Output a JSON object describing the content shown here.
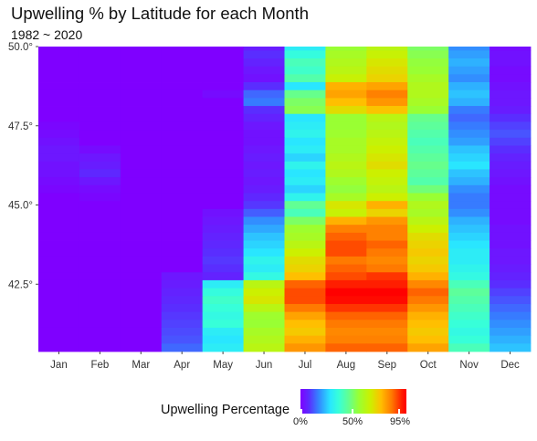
{
  "title": "Upwelling % by Latitude for each Month",
  "subtitle": "1982 ~ 2020",
  "legend": {
    "title": "Upwelling Percentage",
    "labels": [
      "0%",
      "50%",
      "95%"
    ],
    "label_values": [
      0,
      50,
      95
    ],
    "range": [
      0,
      97
    ]
  },
  "chart_data": {
    "type": "heatmap",
    "title": "Upwelling % by Latitude for each Month",
    "subtitle": "1982 ~ 2020",
    "xlabel": "",
    "ylabel": "",
    "x_categories": [
      "Jan",
      "Feb",
      "Mar",
      "Apr",
      "May",
      "Jun",
      "Jul",
      "Aug",
      "Sep",
      "Oct",
      "Nov",
      "Dec"
    ],
    "y_tick_labels": [
      "42.5°",
      "45.0°",
      "47.5°",
      "50.0°"
    ],
    "y_tick_values": [
      42.5,
      45.0,
      47.5,
      50.0
    ],
    "ylim": [
      40.375,
      50.0
    ],
    "colorscale": "rainbow (purple 0% → cyan → green 50% → yellow → red 95%)",
    "grid": false,
    "legend_position": "bottom",
    "latitudes": [
      50.0,
      49.75,
      49.5,
      49.25,
      49.0,
      48.75,
      48.5,
      48.25,
      48.0,
      47.75,
      47.5,
      47.25,
      47.0,
      46.75,
      46.5,
      46.25,
      46.0,
      45.75,
      45.5,
      45.25,
      45.0,
      44.75,
      44.5,
      44.25,
      44.0,
      43.75,
      43.5,
      43.25,
      43.0,
      42.75,
      42.5,
      42.25,
      42.0,
      41.75,
      41.5,
      41.25,
      41.0,
      40.75,
      40.5
    ],
    "values_note": "rows follow latitudes (north to south); columns follow x_categories; values in %",
    "values": [
      [
        0,
        0,
        0,
        0,
        0,
        5,
        30,
        55,
        62,
        50,
        18,
        2
      ],
      [
        0,
        0,
        0,
        0,
        0,
        8,
        35,
        58,
        65,
        52,
        20,
        3
      ],
      [
        0,
        0,
        0,
        0,
        0,
        6,
        40,
        60,
        68,
        54,
        22,
        3
      ],
      [
        0,
        0,
        0,
        0,
        0,
        4,
        38,
        62,
        70,
        55,
        20,
        2
      ],
      [
        0,
        0,
        0,
        0,
        0,
        3,
        42,
        65,
        72,
        58,
        18,
        2
      ],
      [
        0,
        0,
        0,
        0,
        0,
        8,
        28,
        78,
        80,
        60,
        22,
        3
      ],
      [
        0,
        0,
        0,
        0,
        2,
        14,
        46,
        80,
        85,
        60,
        24,
        4
      ],
      [
        0,
        0,
        0,
        0,
        0,
        16,
        50,
        76,
        82,
        58,
        22,
        4
      ],
      [
        0,
        0,
        0,
        0,
        0,
        8,
        52,
        70,
        75,
        55,
        16,
        5
      ],
      [
        0,
        0,
        0,
        0,
        0,
        6,
        28,
        55,
        62,
        46,
        14,
        8
      ],
      [
        1,
        0,
        0,
        0,
        0,
        4,
        30,
        55,
        60,
        44,
        16,
        10
      ],
      [
        2,
        0,
        0,
        0,
        0,
        3,
        32,
        56,
        62,
        42,
        18,
        12
      ],
      [
        3,
        0,
        0,
        0,
        0,
        3,
        28,
        58,
        64,
        40,
        20,
        10
      ],
      [
        4,
        2,
        0,
        0,
        0,
        4,
        30,
        58,
        66,
        42,
        24,
        8
      ],
      [
        4,
        4,
        0,
        0,
        0,
        5,
        26,
        60,
        68,
        44,
        26,
        6
      ],
      [
        3,
        5,
        0,
        0,
        0,
        4,
        32,
        62,
        70,
        46,
        28,
        5
      ],
      [
        3,
        7,
        0,
        0,
        0,
        5,
        28,
        60,
        66,
        44,
        24,
        4
      ],
      [
        2,
        4,
        0,
        0,
        0,
        4,
        30,
        56,
        64,
        42,
        22,
        3
      ],
      [
        1,
        2,
        0,
        0,
        0,
        5,
        26,
        54,
        62,
        48,
        18,
        2
      ],
      [
        0,
        1,
        0,
        0,
        0,
        7,
        32,
        58,
        66,
        55,
        16,
        2
      ],
      [
        0,
        0,
        0,
        0,
        0,
        9,
        45,
        68,
        78,
        60,
        16,
        2
      ],
      [
        0,
        0,
        0,
        0,
        3,
        13,
        40,
        65,
        72,
        58,
        18,
        2
      ],
      [
        0,
        0,
        0,
        0,
        4,
        18,
        50,
        78,
        82,
        62,
        22,
        2
      ],
      [
        0,
        0,
        0,
        0,
        5,
        21,
        56,
        85,
        85,
        66,
        24,
        3
      ],
      [
        0,
        0,
        0,
        0,
        6,
        24,
        58,
        88,
        85,
        70,
        26,
        3
      ],
      [
        0,
        0,
        0,
        0,
        7,
        26,
        62,
        90,
        88,
        72,
        28,
        3
      ],
      [
        0,
        0,
        0,
        0,
        8,
        28,
        66,
        90,
        86,
        74,
        30,
        4
      ],
      [
        0,
        0,
        0,
        0,
        9,
        32,
        70,
        86,
        84,
        72,
        30,
        4
      ],
      [
        0,
        0,
        0,
        0,
        8,
        30,
        72,
        88,
        86,
        74,
        32,
        5
      ],
      [
        0,
        0,
        0,
        4,
        6,
        34,
        76,
        90,
        92,
        78,
        34,
        6
      ],
      [
        0,
        0,
        0,
        5,
        30,
        62,
        88,
        94,
        94,
        84,
        40,
        8
      ],
      [
        0,
        0,
        0,
        6,
        35,
        66,
        90,
        97,
        97,
        88,
        44,
        10
      ],
      [
        0,
        0,
        0,
        7,
        38,
        68,
        90,
        96,
        96,
        86,
        42,
        12
      ],
      [
        0,
        0,
        0,
        8,
        36,
        62,
        86,
        92,
        92,
        82,
        40,
        14
      ],
      [
        0,
        0,
        0,
        9,
        34,
        56,
        80,
        88,
        88,
        78,
        38,
        16
      ],
      [
        0,
        0,
        0,
        10,
        36,
        55,
        76,
        86,
        86,
        76,
        36,
        18
      ],
      [
        0,
        0,
        0,
        11,
        30,
        58,
        74,
        84,
        84,
        74,
        34,
        20
      ],
      [
        0,
        0,
        0,
        12,
        28,
        60,
        78,
        85,
        85,
        76,
        36,
        22
      ],
      [
        0,
        0,
        0,
        14,
        30,
        62,
        82,
        88,
        88,
        80,
        40,
        24
      ]
    ]
  }
}
